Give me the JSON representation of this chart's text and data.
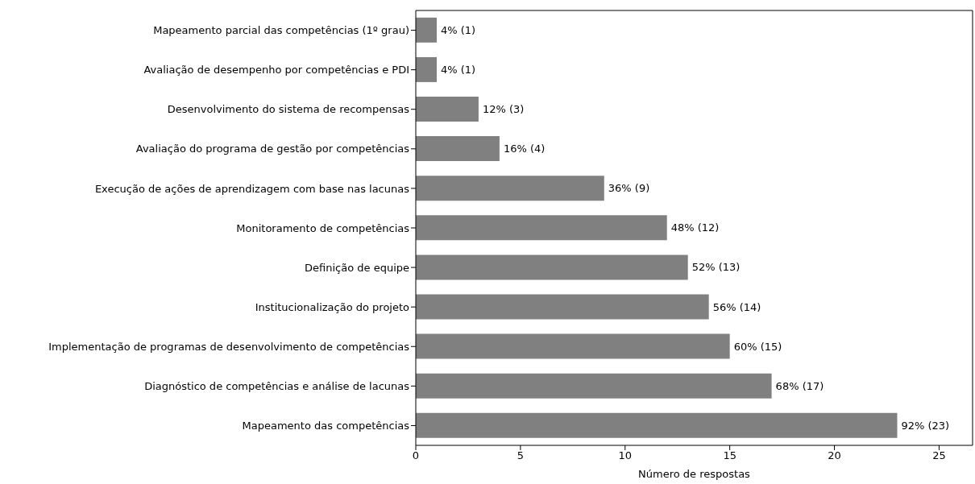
{
  "chart_data": {
    "type": "bar",
    "orientation": "horizontal",
    "xlabel": "Número de respostas",
    "categories": [
      "Mapeamento parcial das competências (1º grau)",
      "Avaliação de desempenho por competências e PDI",
      "Desenvolvimento do sistema de recompensas",
      "Avaliação do programa de gestão por competências",
      "Execução de ações de aprendizagem com base nas lacunas",
      "Monitoramento de competências",
      "Definição de equipe",
      "Institucionalização do projeto",
      "Implementação de programas de desenvolvimento de competências",
      "Diagnóstico de competências e análise de lacunas",
      "Mapeamento das competências"
    ],
    "values": [
      1,
      1,
      3,
      4,
      9,
      12,
      13,
      14,
      15,
      17,
      23
    ],
    "value_labels": [
      "4% (1)",
      "4% (1)",
      "12% (3)",
      "16% (4)",
      "36% (9)",
      "48% (12)",
      "52% (13)",
      "56% (14)",
      "60% (15)",
      "68% (17)",
      "92% (23)"
    ],
    "color": "#808080",
    "xlim": [
      0,
      26.6
    ],
    "xticks": [
      0,
      5,
      10,
      15,
      20,
      25
    ]
  }
}
